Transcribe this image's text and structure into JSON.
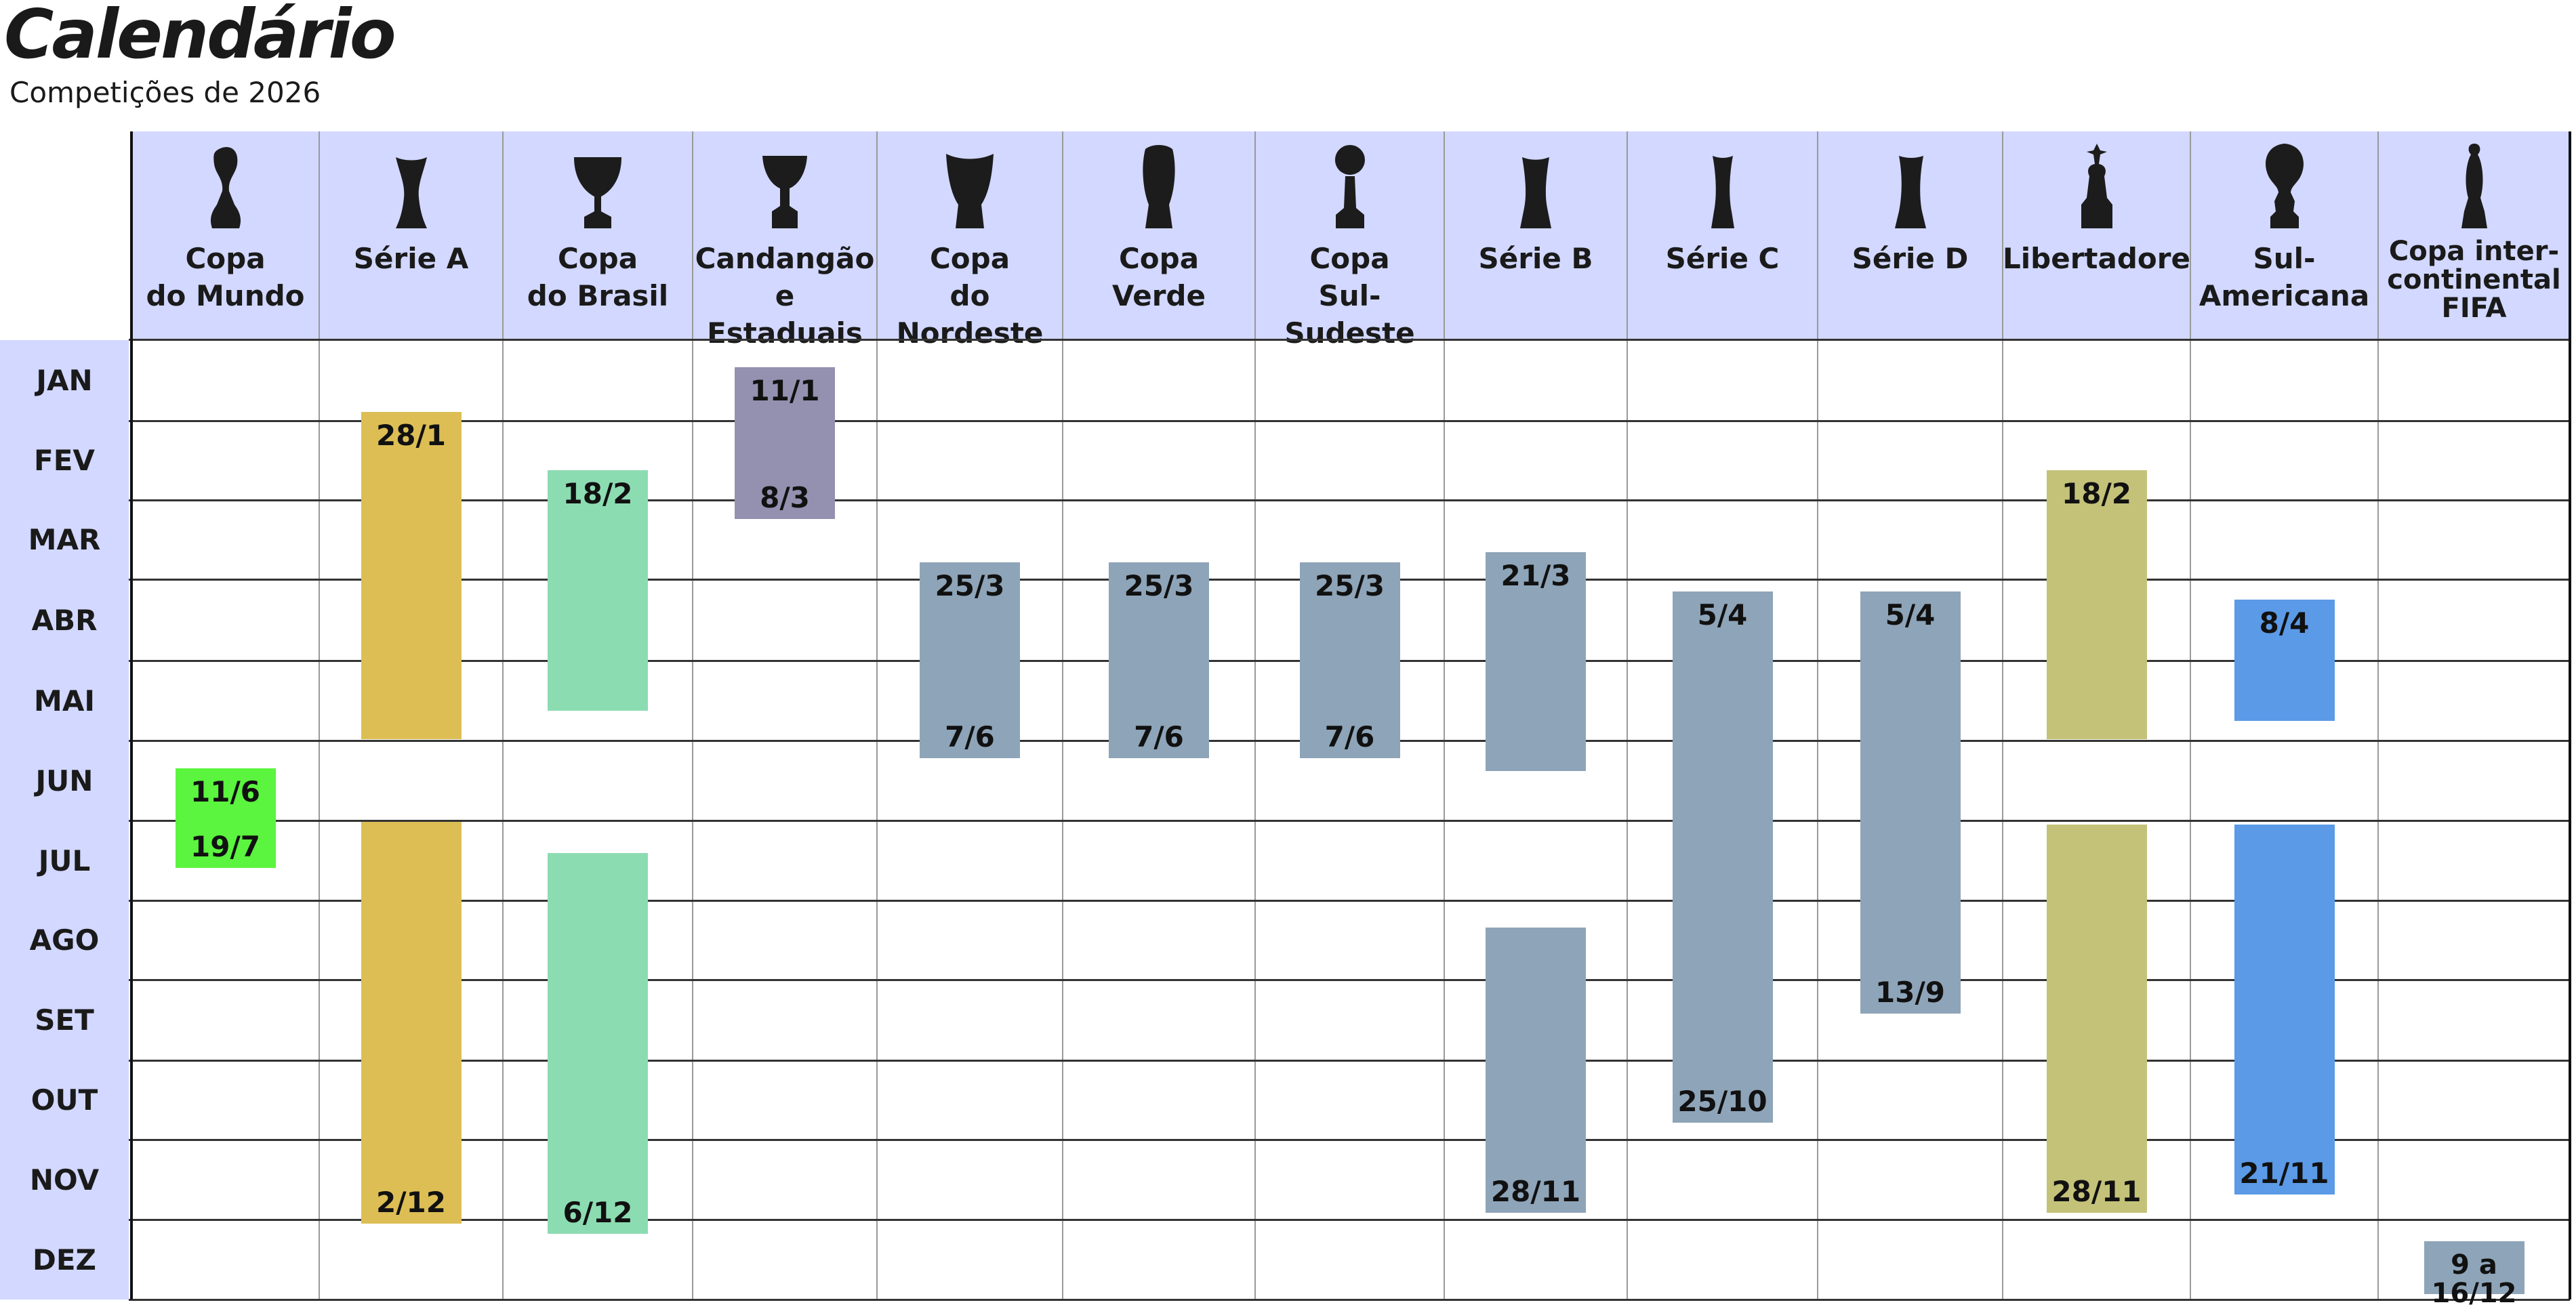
{
  "header": {
    "title": "Calendário",
    "subtitle": "Competições de 2026"
  },
  "chart_data": {
    "type": "gantt",
    "months": [
      "JAN",
      "FEV",
      "MAR",
      "ABR",
      "MAI",
      "JUN",
      "JUL",
      "AGO",
      "SET",
      "OUT",
      "NOV",
      "DEZ"
    ],
    "competitions": [
      {
        "name": "Copa\ndo Mundo",
        "icon": "world-cup-trophy-icon",
        "color": "#5bf43f",
        "segments": [
          {
            "start": "2026-06-11",
            "end": "2026-07-19",
            "start_label": "11/6",
            "end_label": "19/7"
          }
        ]
      },
      {
        "name": "Série A",
        "icon": "serie-a-trophy-icon",
        "color": "#dcbe55",
        "segments": [
          {
            "start": "2026-01-28",
            "end": "2026-05-31",
            "start_label": "28/1",
            "end_label": ""
          },
          {
            "start": "2026-07-01",
            "end": "2026-12-02",
            "start_label": "",
            "end_label": "2/12"
          }
        ]
      },
      {
        "name": "Copa\ndo Brasil",
        "icon": "copa-do-brasil-trophy-icon",
        "color": "#8cdcb2",
        "segments": [
          {
            "start": "2026-02-18",
            "end": "2026-05-20",
            "start_label": "18/2",
            "end_label": ""
          },
          {
            "start": "2026-07-13",
            "end": "2026-12-06",
            "start_label": "",
            "end_label": "6/12"
          }
        ]
      },
      {
        "name": "Candangão\ne Estaduais",
        "icon": "candangao-trophy-icon",
        "color": "#9390b0",
        "segments": [
          {
            "start": "2026-01-11",
            "end": "2026-03-08",
            "start_label": "11/1",
            "end_label": "8/3"
          }
        ]
      },
      {
        "name": "Copa\ndo Nordeste",
        "icon": "copa-do-nordeste-trophy-icon",
        "color": "#8ea4b8",
        "segments": [
          {
            "start": "2026-03-25",
            "end": "2026-06-07",
            "start_label": "25/3",
            "end_label": "7/6"
          }
        ]
      },
      {
        "name": "Copa\nVerde",
        "icon": "copa-verde-trophy-icon",
        "color": "#8ea4b8",
        "segments": [
          {
            "start": "2026-03-25",
            "end": "2026-06-07",
            "start_label": "25/3",
            "end_label": "7/6"
          }
        ]
      },
      {
        "name": "Copa\nSul-Sudeste",
        "icon": "copa-sul-sudeste-trophy-icon",
        "color": "#8ea4b8",
        "segments": [
          {
            "start": "2026-03-25",
            "end": "2026-06-07",
            "start_label": "25/3",
            "end_label": "7/6"
          }
        ]
      },
      {
        "name": "Série B",
        "icon": "serie-b-trophy-icon",
        "color": "#8ea4b8",
        "segments": [
          {
            "start": "2026-03-21",
            "end": "2026-06-12",
            "start_label": "21/3",
            "end_label": ""
          },
          {
            "start": "2026-08-11",
            "end": "2026-11-28",
            "start_label": "",
            "end_label": "28/11"
          }
        ]
      },
      {
        "name": "Série C",
        "icon": "serie-c-trophy-icon",
        "color": "#8ea4b8",
        "segments": [
          {
            "start": "2026-04-05",
            "end": "2026-10-25",
            "start_label": "5/4",
            "end_label": "25/10"
          }
        ]
      },
      {
        "name": "Série D",
        "icon": "serie-d-trophy-icon",
        "color": "#8ea4b8",
        "segments": [
          {
            "start": "2026-04-05",
            "end": "2026-09-13",
            "start_label": "5/4",
            "end_label": "13/9"
          }
        ]
      },
      {
        "name": "Libertadores",
        "icon": "libertadores-trophy-icon",
        "color": "#c4c279",
        "segments": [
          {
            "start": "2026-02-18",
            "end": "2026-05-31",
            "start_label": "18/2",
            "end_label": ""
          },
          {
            "start": "2026-07-02",
            "end": "2026-11-28",
            "start_label": "",
            "end_label": "28/11"
          }
        ]
      },
      {
        "name": "Sul-Americana",
        "icon": "sul-americana-trophy-icon",
        "color": "#5b9ae6",
        "segments": [
          {
            "start": "2026-04-08",
            "end": "2026-05-24",
            "start_label": "8/4",
            "end_label": ""
          },
          {
            "start": "2026-07-02",
            "end": "2026-11-21",
            "start_label": "",
            "end_label": "21/11"
          }
        ]
      },
      {
        "name": "Copa inter-\ncontinental\nFIFA",
        "icon": "intercontinental-trophy-icon",
        "color": "#8ea4b8",
        "segments": [
          {
            "start": "2026-12-09",
            "end": "2026-12-16",
            "start_label": "9 a\n16/12",
            "end_label": ""
          }
        ]
      }
    ]
  }
}
